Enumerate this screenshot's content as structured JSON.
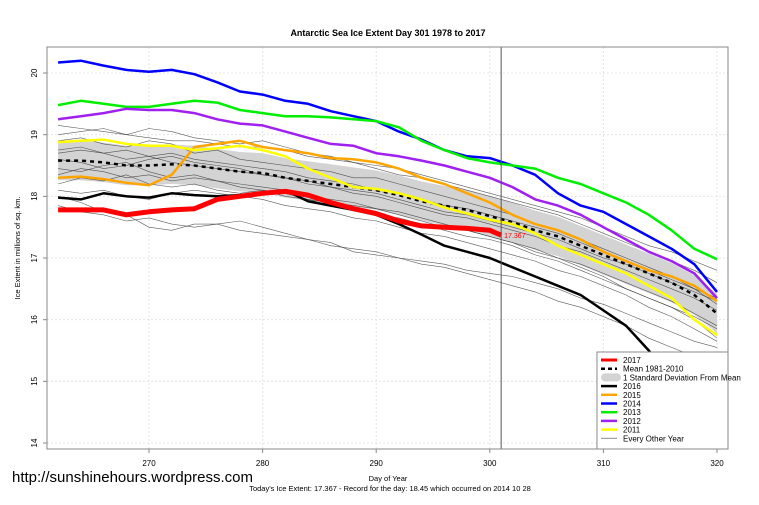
{
  "chart_data": {
    "type": "line",
    "title": "Antarctic Sea Ice Extent Day 301 1978 to 2017",
    "xlabel": "Day of Year",
    "ylabel": "Ice Extent in millions of sq. km.",
    "subtitle": "Today's Ice Extent: 17.367  - Record for the day: 18.45 which occurred on 2014 10 28",
    "xlim": [
      260.8,
      321
    ],
    "ylim": [
      13.9,
      20.4
    ],
    "xticks": [
      270,
      280,
      290,
      300,
      310,
      320
    ],
    "yticks": [
      14,
      15,
      16,
      17,
      18,
      19,
      20
    ],
    "grid": true,
    "marker_day": 301,
    "current_label": "17.367",
    "legend_position": "bottom-right",
    "x": [
      262,
      264,
      266,
      268,
      270,
      272,
      274,
      276,
      278,
      280,
      282,
      284,
      286,
      288,
      290,
      292,
      294,
      296,
      298,
      300,
      302,
      304,
      306,
      308,
      310,
      312,
      314,
      316,
      318,
      320
    ],
    "series": [
      {
        "name": "Every Other Year",
        "color": "#8c8c8c",
        "kind": "gray",
        "values": [
          [
            18.9,
            18.95,
            18.85,
            18.8,
            18.9,
            18.85,
            18.7,
            18.75,
            18.6,
            18.55,
            18.5,
            18.45,
            18.4,
            18.3,
            18.3,
            18.2,
            18.1,
            18.0,
            17.9,
            17.8,
            17.7,
            17.55,
            17.45,
            17.3,
            17.15,
            17.0,
            16.85,
            16.7,
            16.5,
            16.25
          ],
          [
            18.2,
            18.3,
            18.25,
            18.35,
            18.2,
            18.15,
            18.2,
            18.1,
            18.05,
            18.1,
            18.0,
            17.95,
            17.9,
            17.85,
            17.8,
            17.7,
            17.6,
            17.5,
            17.45,
            17.35,
            17.25,
            17.1,
            17.0,
            16.85,
            16.7,
            16.5,
            16.35,
            16.2,
            16.0,
            15.7
          ],
          [
            17.85,
            17.75,
            17.7,
            17.6,
            17.65,
            17.55,
            17.5,
            17.55,
            17.45,
            17.4,
            17.35,
            17.3,
            17.2,
            17.15,
            17.1,
            17.0,
            16.9,
            16.85,
            16.75,
            16.65,
            16.55,
            16.45,
            16.3,
            16.2,
            16.05,
            15.9,
            15.7,
            15.55,
            15.4,
            15.2
          ],
          [
            18.0,
            17.9,
            17.75,
            17.7,
            17.5,
            17.45,
            17.55,
            17.55,
            17.6,
            17.5,
            17.4,
            17.3,
            17.25,
            17.1,
            17.05,
            17.0,
            16.95,
            16.9,
            16.8,
            16.75,
            16.7,
            16.6,
            16.5,
            16.35,
            16.25,
            16.1,
            15.95,
            15.8,
            15.65,
            15.55
          ],
          [
            18.7,
            18.75,
            18.7,
            18.6,
            18.65,
            18.55,
            18.5,
            18.45,
            18.4,
            18.35,
            18.3,
            18.25,
            18.15,
            18.05,
            18.0,
            17.9,
            17.8,
            17.7,
            17.65,
            17.55,
            17.45,
            17.35,
            17.2,
            17.1,
            16.95,
            16.8,
            16.65,
            16.5,
            16.35,
            16.15
          ],
          [
            19.0,
            19.05,
            19.1,
            19.0,
            18.95,
            18.9,
            18.9,
            18.85,
            18.8,
            18.8,
            18.75,
            18.65,
            18.6,
            18.55,
            18.45,
            18.35,
            18.3,
            18.2,
            18.1,
            18.0,
            17.9,
            17.8,
            17.7,
            17.55,
            17.4,
            17.25,
            17.1,
            16.95,
            16.8,
            16.6
          ],
          [
            18.45,
            18.4,
            18.5,
            18.55,
            18.4,
            18.3,
            18.35,
            18.25,
            18.2,
            18.15,
            18.1,
            18.0,
            17.95,
            17.9,
            17.8,
            17.75,
            17.65,
            17.55,
            17.45,
            17.35,
            17.25,
            17.15,
            17.0,
            16.9,
            16.75,
            16.6,
            16.45,
            16.3,
            16.1,
            15.9
          ],
          [
            18.6,
            18.55,
            18.45,
            18.5,
            18.6,
            18.65,
            18.55,
            18.5,
            18.45,
            18.35,
            18.3,
            18.2,
            18.15,
            18.1,
            18.05,
            17.95,
            17.85,
            17.75,
            17.7,
            17.6,
            17.5,
            17.4,
            17.3,
            17.15,
            17.0,
            16.9,
            16.75,
            16.6,
            16.45,
            16.3
          ],
          [
            18.1,
            18.05,
            18.1,
            18.0,
            17.95,
            18.05,
            18.1,
            18.05,
            18.0,
            17.95,
            17.85,
            17.8,
            17.75,
            17.65,
            17.6,
            17.5,
            17.4,
            17.35,
            17.25,
            17.15,
            17.05,
            16.95,
            16.8,
            16.7,
            16.55,
            16.4,
            16.2,
            16.05,
            15.85,
            15.65
          ],
          [
            19.15,
            19.1,
            19.05,
            19.0,
            19.1,
            19.05,
            18.95,
            18.9,
            18.85,
            18.9,
            18.8,
            18.7,
            18.65,
            18.55,
            18.5,
            18.45,
            18.35,
            18.25,
            18.15,
            18.05,
            17.95,
            17.85,
            17.75,
            17.65,
            17.5,
            17.35,
            17.2,
            17.1,
            16.95,
            16.8
          ],
          [
            18.35,
            18.45,
            18.4,
            18.3,
            18.35,
            18.25,
            18.3,
            18.25,
            18.15,
            18.1,
            18.05,
            17.95,
            17.85,
            17.8,
            17.7,
            17.65,
            17.55,
            17.45,
            17.35,
            17.3,
            17.2,
            17.05,
            16.95,
            16.8,
            16.65,
            16.5,
            16.35,
            16.2,
            16.05,
            15.85
          ],
          [
            18.75,
            18.8,
            18.7,
            18.75,
            18.65,
            18.7,
            18.6,
            18.55,
            18.5,
            18.45,
            18.4,
            18.3,
            18.25,
            18.2,
            18.1,
            18.05,
            17.95,
            17.85,
            17.8,
            17.7,
            17.6,
            17.5,
            17.4,
            17.25,
            17.1,
            16.95,
            16.8,
            16.65,
            16.5,
            16.35
          ]
        ]
      },
      {
        "name": "1 Standard Deviation From Mean",
        "color": "#d3d3d3",
        "kind": "band",
        "halfwidth": 0.32
      },
      {
        "name": "Mean 1981-2010",
        "color": "#000000",
        "kind": "mean",
        "values": [
          18.58,
          18.58,
          18.55,
          18.5,
          18.5,
          18.52,
          18.5,
          18.45,
          18.4,
          18.38,
          18.3,
          18.25,
          18.2,
          18.15,
          18.1,
          18.02,
          17.92,
          17.85,
          17.78,
          17.68,
          17.58,
          17.45,
          17.35,
          17.2,
          17.05,
          16.9,
          16.75,
          16.6,
          16.4,
          16.1
        ]
      },
      {
        "name": "2016",
        "color": "#000000",
        "kind": "year",
        "values": [
          17.98,
          17.95,
          18.05,
          18.0,
          17.98,
          18.05,
          18.02,
          18.0,
          18.02,
          18.05,
          18.1,
          17.92,
          17.85,
          17.78,
          17.7,
          17.55,
          17.38,
          17.2,
          17.1,
          17.0,
          16.85,
          16.7,
          16.55,
          16.4,
          16.15,
          15.9,
          15.5,
          15.0,
          14.55,
          14.15
        ]
      },
      {
        "name": "2015",
        "color": "#ffa500",
        "kind": "year",
        "values": [
          18.3,
          18.32,
          18.28,
          18.22,
          18.18,
          18.35,
          18.8,
          18.85,
          18.9,
          18.8,
          18.75,
          18.7,
          18.62,
          18.6,
          18.55,
          18.45,
          18.3,
          18.2,
          18.05,
          17.9,
          17.7,
          17.55,
          17.45,
          17.3,
          17.1,
          16.95,
          16.8,
          16.7,
          16.55,
          16.3
        ]
      },
      {
        "name": "2014",
        "color": "#0000ff",
        "kind": "year",
        "values": [
          20.17,
          20.2,
          20.12,
          20.05,
          20.02,
          20.05,
          19.98,
          19.85,
          19.7,
          19.65,
          19.55,
          19.5,
          19.38,
          19.3,
          19.22,
          19.05,
          18.92,
          18.75,
          18.65,
          18.62,
          18.5,
          18.35,
          18.05,
          17.85,
          17.75,
          17.55,
          17.35,
          17.15,
          16.9,
          16.45
        ]
      },
      {
        "name": "2013",
        "color": "#00ee00",
        "kind": "year",
        "values": [
          19.48,
          19.55,
          19.5,
          19.45,
          19.45,
          19.5,
          19.55,
          19.52,
          19.4,
          19.35,
          19.3,
          19.3,
          19.28,
          19.25,
          19.22,
          19.12,
          18.9,
          18.75,
          18.62,
          18.55,
          18.5,
          18.45,
          18.3,
          18.2,
          18.05,
          17.9,
          17.7,
          17.45,
          17.15,
          16.98
        ]
      },
      {
        "name": "2012",
        "color": "#a020f0",
        "kind": "year",
        "values": [
          19.25,
          19.3,
          19.35,
          19.42,
          19.4,
          19.4,
          19.35,
          19.25,
          19.18,
          19.15,
          19.05,
          18.95,
          18.85,
          18.82,
          18.7,
          18.65,
          18.58,
          18.5,
          18.4,
          18.3,
          18.15,
          17.95,
          17.85,
          17.7,
          17.5,
          17.3,
          17.1,
          16.95,
          16.75,
          16.35
        ]
      },
      {
        "name": "2011",
        "color": "#ffff00",
        "kind": "year",
        "values": [
          18.88,
          18.9,
          18.92,
          18.85,
          18.82,
          18.82,
          18.75,
          18.78,
          18.82,
          18.75,
          18.65,
          18.45,
          18.3,
          18.15,
          18.12,
          18.05,
          17.95,
          17.82,
          17.72,
          17.62,
          17.55,
          17.4,
          17.2,
          17.05,
          16.9,
          16.75,
          16.55,
          16.35,
          16.0,
          15.75
        ]
      },
      {
        "name": "2017",
        "color": "#ff0000",
        "kind": "current",
        "x": [
          262,
          264,
          266,
          268,
          270,
          272,
          274,
          276,
          278,
          280,
          282,
          284,
          286,
          288,
          290,
          292,
          294,
          296,
          298,
          300,
          301
        ],
        "values": [
          17.78,
          17.78,
          17.78,
          17.7,
          17.75,
          17.78,
          17.8,
          17.95,
          18.0,
          18.05,
          18.08,
          18.02,
          17.9,
          17.8,
          17.72,
          17.6,
          17.52,
          17.5,
          17.48,
          17.45,
          17.37
        ]
      }
    ],
    "legend": [
      {
        "label": "2017",
        "color": "#ff0000",
        "style": "thick"
      },
      {
        "label": "Mean 1981-2010",
        "color": "#000000",
        "style": "dashed"
      },
      {
        "label": "1 Standard Deviation From Mean",
        "color": "#d3d3d3",
        "style": "band"
      },
      {
        "label": "2016",
        "color": "#000000",
        "style": "solid"
      },
      {
        "label": "2015",
        "color": "#ffa500",
        "style": "solid"
      },
      {
        "label": "2014",
        "color": "#0000ff",
        "style": "solid"
      },
      {
        "label": "2013",
        "color": "#00ee00",
        "style": "solid"
      },
      {
        "label": "2012",
        "color": "#a020f0",
        "style": "solid"
      },
      {
        "label": "2011",
        "color": "#ffff00",
        "style": "solid"
      },
      {
        "label": "Every Other Year",
        "color": "#8c8c8c",
        "style": "thin"
      }
    ]
  },
  "watermark": "http://sunshinehours.wordpress.com"
}
